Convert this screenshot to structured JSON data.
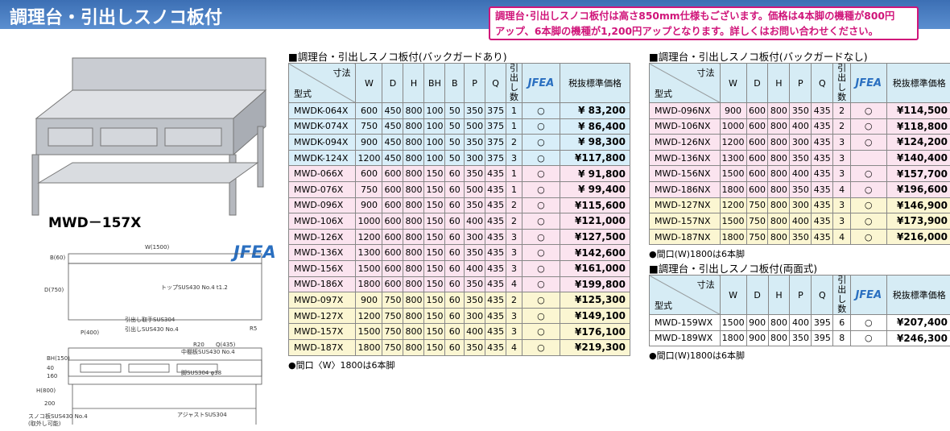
{
  "header": {
    "title": "調理台・引出しスノコ板付",
    "notice": [
      "調理台･引出しスノコ板付は高さ850mm仕様もございます。価格は4本脚の機種が800円",
      "アップ、6本脚の機種が1,200円アップとなります。詳しくはお問い合わせください。"
    ]
  },
  "product": {
    "model": "MWD－157X",
    "logo": "JFEA"
  },
  "drawing": {
    "labels": [
      "W(1500)",
      "B(60)",
      "D(750)",
      "トップSUS430 No.4 t1.2",
      "P(400)",
      "引出し取手SUS304",
      "引出しSUS430 No.4",
      "R20",
      "Q(435)",
      "R5",
      "BH(150)",
      "H(800)",
      "中棚板SUS430 No.4",
      "脚SUS304 φ38",
      "スノコ板SUS430 No.4",
      "(取外し可能)",
      "アジャストSUS304",
      "40",
      "160",
      "200"
    ]
  },
  "tables": [
    {
      "title": "■調理台・引出しスノコ板付(バックガードあり)",
      "corner": {
        "top": "寸法",
        "bottom": "型式"
      },
      "columns": [
        "W",
        "D",
        "H",
        "BH",
        "B",
        "P",
        "Q",
        "引出し数",
        "JFEA",
        "税抜標準価格"
      ],
      "groups": [
        {
          "color": "#d8eef9",
          "rows": [
            [
              "MWDK-064X",
              "600",
              "450",
              "800",
              "100",
              "50",
              "350",
              "375",
              "1",
              "○",
              "¥ 83,200"
            ],
            [
              "MWDK-074X",
              "750",
              "450",
              "800",
              "100",
              "50",
              "500",
              "375",
              "1",
              "○",
              "¥ 86,400"
            ],
            [
              "MWDK-094X",
              "900",
              "450",
              "800",
              "100",
              "50",
              "350",
              "375",
              "2",
              "○",
              "¥ 98,300"
            ],
            [
              "MWDK-124X",
              "1200",
              "450",
              "800",
              "100",
              "50",
              "300",
              "375",
              "3",
              "○",
              "¥117,800"
            ]
          ]
        },
        {
          "color": "#fbe4ef",
          "rows": [
            [
              "MWD-066X",
              "600",
              "600",
              "800",
              "150",
              "60",
              "350",
              "435",
              "1",
              "○",
              "¥ 91,800"
            ],
            [
              "MWD-076X",
              "750",
              "600",
              "800",
              "150",
              "60",
              "500",
              "435",
              "1",
              "○",
              "¥ 99,400"
            ],
            [
              "MWD-096X",
              "900",
              "600",
              "800",
              "150",
              "60",
              "350",
              "435",
              "2",
              "○",
              "¥115,600"
            ],
            [
              "MWD-106X",
              "1000",
              "600",
              "800",
              "150",
              "60",
              "400",
              "435",
              "2",
              "○",
              "¥121,000"
            ],
            [
              "MWD-126X",
              "1200",
              "600",
              "800",
              "150",
              "60",
              "300",
              "435",
              "3",
              "○",
              "¥127,500"
            ],
            [
              "MWD-136X",
              "1300",
              "600",
              "800",
              "150",
              "60",
              "350",
              "435",
              "3",
              "○",
              "¥142,600"
            ],
            [
              "MWD-156X",
              "1500",
              "600",
              "800",
              "150",
              "60",
              "400",
              "435",
              "3",
              "○",
              "¥161,000"
            ],
            [
              "MWD-186X",
              "1800",
              "600",
              "800",
              "150",
              "60",
              "350",
              "435",
              "4",
              "○",
              "¥199,800"
            ]
          ]
        },
        {
          "color": "#fbf6d2",
          "rows": [
            [
              "MWD-097X",
              "900",
              "750",
              "800",
              "150",
              "60",
              "350",
              "435",
              "2",
              "○",
              "¥125,300"
            ],
            [
              "MWD-127X",
              "1200",
              "750",
              "800",
              "150",
              "60",
              "300",
              "435",
              "3",
              "○",
              "¥149,100"
            ],
            [
              "MWD-157X",
              "1500",
              "750",
              "800",
              "150",
              "60",
              "400",
              "435",
              "3",
              "○",
              "¥176,100"
            ],
            [
              "MWD-187X",
              "1800",
              "750",
              "800",
              "150",
              "60",
              "350",
              "435",
              "4",
              "○",
              "¥219,300"
            ]
          ]
        }
      ],
      "note": "●間口〈W〉1800は6本脚"
    },
    {
      "title": "■調理台・引出しスノコ板付(バックガードなし)",
      "corner": {
        "top": "寸法",
        "bottom": "型式"
      },
      "columns": [
        "W",
        "D",
        "H",
        "P",
        "Q",
        "引出し数",
        "JFEA",
        "税抜標準価格"
      ],
      "groups": [
        {
          "color": "#fbe4ef",
          "rows": [
            [
              "MWD-096NX",
              "900",
              "600",
              "800",
              "350",
              "435",
              "2",
              "○",
              "¥114,500"
            ],
            [
              "MWD-106NX",
              "1000",
              "600",
              "800",
              "400",
              "435",
              "2",
              "○",
              "¥118,800"
            ],
            [
              "MWD-126NX",
              "1200",
              "600",
              "800",
              "300",
              "435",
              "3",
              "○",
              "¥124,200"
            ],
            [
              "MWD-136NX",
              "1300",
              "600",
              "800",
              "350",
              "435",
              "3",
              null,
              "¥140,400"
            ],
            [
              "MWD-156NX",
              "1500",
              "600",
              "800",
              "400",
              "435",
              "3",
              "○",
              "¥157,700"
            ],
            [
              "MWD-186NX",
              "1800",
              "600",
              "800",
              "350",
              "435",
              "4",
              "○",
              "¥196,600"
            ]
          ]
        },
        {
          "color": "#fbf6d2",
          "rows": [
            [
              "MWD-127NX",
              "1200",
              "750",
              "800",
              "300",
              "435",
              "3",
              "○",
              "¥146,900"
            ],
            [
              "MWD-157NX",
              "1500",
              "750",
              "800",
              "400",
              "435",
              "3",
              "○",
              "¥173,900"
            ],
            [
              "MWD-187NX",
              "1800",
              "750",
              "800",
              "350",
              "435",
              "4",
              "○",
              "¥216,000"
            ]
          ]
        }
      ],
      "note": "●間口(W)1800は6本脚"
    },
    {
      "title": "■調理台・引出しスノコ板付(両面式)",
      "corner": {
        "top": "寸法",
        "bottom": "型式"
      },
      "columns": [
        "W",
        "D",
        "H",
        "P",
        "Q",
        "引出し数",
        "JFEA",
        "税抜標準価格"
      ],
      "groups": [
        {
          "color": "#ffffff",
          "rows": [
            [
              "MWD-159WX",
              "1500",
              "900",
              "800",
              "400",
              "395",
              "6",
              "○",
              "¥207,400"
            ],
            [
              "MWD-189WX",
              "1800",
              "900",
              "800",
              "350",
              "395",
              "8",
              "○",
              "¥246,300"
            ]
          ]
        }
      ],
      "note": "●間口(W)1800は6本脚"
    }
  ]
}
